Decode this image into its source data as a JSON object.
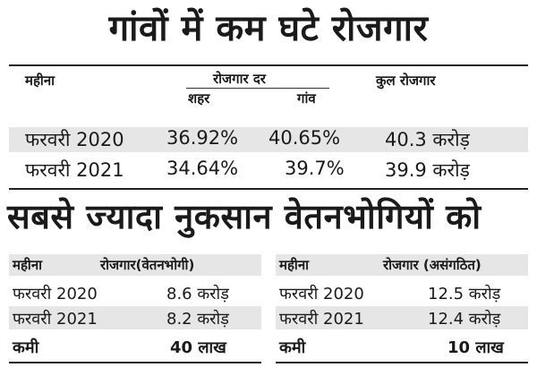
{
  "top": {
    "title": "गांवों में कम घटे रोजगार",
    "headers": {
      "month": "महीना",
      "rate": "रोजगार दर",
      "city": "शहर",
      "village": "गांव",
      "total": "कुल रोजगार"
    },
    "rows": [
      {
        "month": "फरवरी 2020",
        "city": "36.92%",
        "village": "40.65%",
        "total": "40.3 करोड़"
      },
      {
        "month": "फरवरी 2021",
        "city": "34.64%",
        "village": "39.7%",
        "total": "39.9 करोड़"
      }
    ]
  },
  "bottom": {
    "title": "सबसे ज्यादा नुकसान वेतनभोगियों को",
    "left": {
      "headers": {
        "month": "महीना",
        "value": "रोजगार(वेतनभोगी)"
      },
      "rows": [
        {
          "month": "फरवरी 2020",
          "value": "8.6 करोड़"
        },
        {
          "month": "फरवरी 2021",
          "value": "8.2 करोड़"
        }
      ],
      "total": {
        "label": "कमी",
        "value": "40 लाख"
      }
    },
    "right": {
      "headers": {
        "month": "महीना",
        "value": "रोजगार (असंगठित)"
      },
      "rows": [
        {
          "month": "फरवरी 2020",
          "value": "12.5 करोड़"
        },
        {
          "month": "फरवरी 2021",
          "value": "12.4 करोड़"
        }
      ],
      "total": {
        "label": "कमी",
        "value": "10 लाख"
      }
    }
  }
}
